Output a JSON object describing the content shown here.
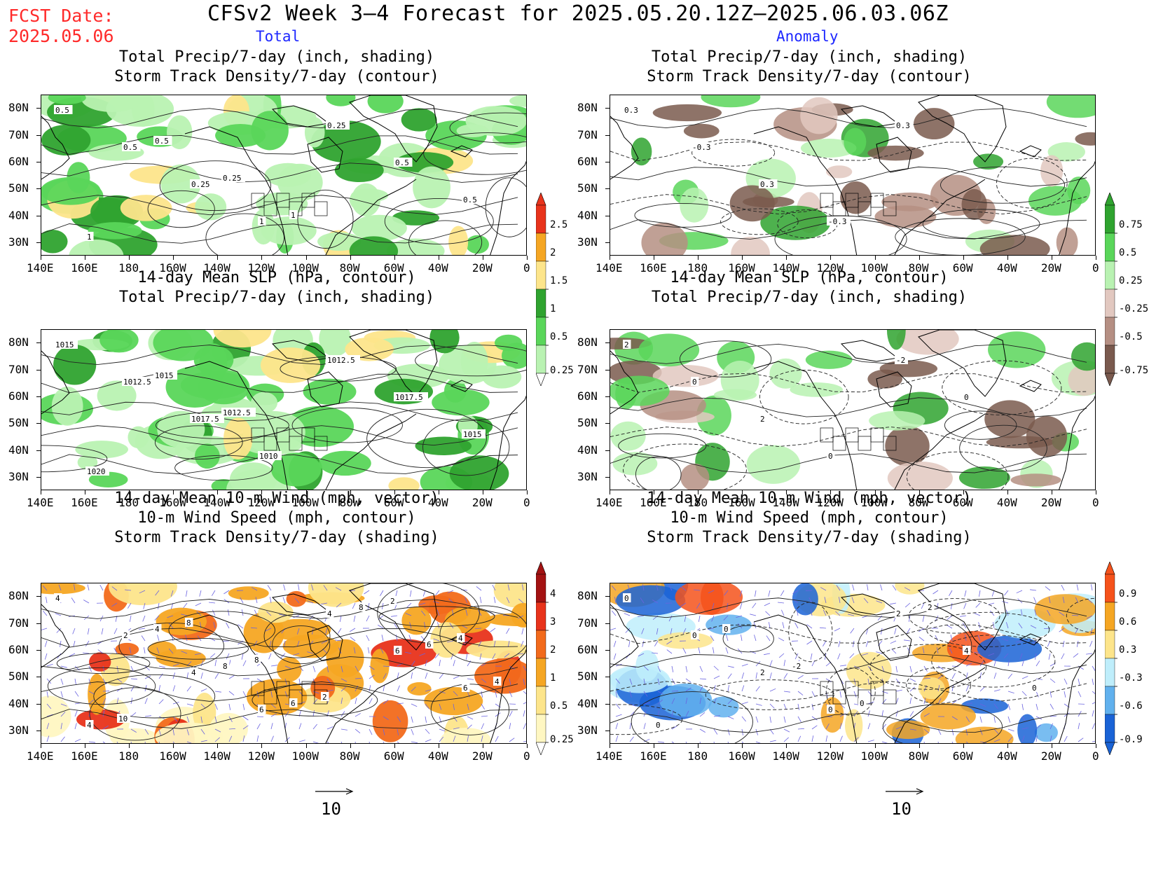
{
  "fcst_date": {
    "label": "FCST Date:",
    "value": "2025.05.06"
  },
  "title": "CFSv2 Week 3–4 Forecast for 2025.05.20.12Z–2025.06.03.06Z",
  "columns": {
    "left": "Total",
    "right": "Anomaly"
  },
  "panels": {
    "row1": {
      "line1": "Total Precip/7-day (inch, shading)",
      "line2": "Storm Track Density/7-day (contour)"
    },
    "row2": {
      "line1": "14-day Mean SLP (hPa, contour)",
      "line2": "Total Precip/7-day (inch, shading)"
    },
    "row3": {
      "line1": "14-day Mean 10-m Wind (mph, vector)",
      "line2": "10-m Wind Speed (mph, contour)",
      "line3": "Storm Track Density/7-day (shading)"
    }
  },
  "axes": {
    "lat_labels": [
      "80N",
      "70N",
      "60N",
      "50N",
      "40N",
      "30N"
    ],
    "lon_labels": [
      "140E",
      "160E",
      "180",
      "160W",
      "140W",
      "120W",
      "100W",
      "80W",
      "60W",
      "40W",
      "20W",
      "0"
    ]
  },
  "colorbars": {
    "precip_total": {
      "labels": [
        "2.5",
        "2",
        "1.5",
        "1",
        "0.5",
        "0.25"
      ],
      "colors": [
        "#e8331b",
        "#f5a623",
        "#fde58b",
        "#2fa32f",
        "#5ad65a",
        "#b9f2b2"
      ]
    },
    "precip_anom": {
      "labels": [
        "0.75",
        "0.5",
        "0.25",
        "-0.25",
        "-0.5",
        "-0.75"
      ],
      "colors": [
        "#2fa32f",
        "#5ad65a",
        "#b9f2b2",
        "#e2c8c0",
        "#b58f83",
        "#7a5a4e"
      ]
    },
    "storm_total": {
      "labels": [
        "4",
        "3",
        "2",
        "1",
        "0.5",
        "0.25"
      ],
      "colors": [
        "#a31212",
        "#e8331b",
        "#f26a1b",
        "#f5a623",
        "#fde58b",
        "#fff7c2"
      ]
    },
    "storm_anom": {
      "labels": [
        "0.9",
        "0.6",
        "0.3",
        "-0.3",
        "-0.6",
        "-0.9"
      ],
      "colors": [
        "#f5521b",
        "#f5a623",
        "#fde58b",
        "#bfeefb",
        "#61b1ee",
        "#1a63d6"
      ]
    }
  },
  "contour_labels": {
    "storm_total": [
      "0.5",
      "0.5",
      "0.25",
      "1",
      "0.25",
      "0.5",
      "0.5",
      "1",
      "0.5",
      "0.25",
      "1"
    ],
    "storm_anom": [
      "0.3",
      "-0.3",
      "0.3",
      "-0.3",
      "0.3"
    ],
    "slp_total": [
      "1015",
      "1012.5",
      "1017.5",
      "1010",
      "1012.5",
      "1017.5",
      "1015",
      "1020",
      "1015",
      "1012.5"
    ],
    "slp_anom": [
      "2",
      "0",
      "2",
      "0",
      "-2",
      "0"
    ],
    "wind_total": [
      "4",
      "2",
      "4",
      "6",
      "4",
      "6",
      "6",
      "4",
      "4",
      "8",
      "6",
      "8",
      "6",
      "4",
      "10",
      "8",
      "8",
      "2",
      "2",
      "4"
    ],
    "wind_anom": [
      "0",
      "0",
      "2",
      "0",
      "2",
      "4",
      "0",
      "0",
      "0",
      "-2",
      "0",
      "2"
    ]
  },
  "vector_reference": {
    "value": "10"
  }
}
